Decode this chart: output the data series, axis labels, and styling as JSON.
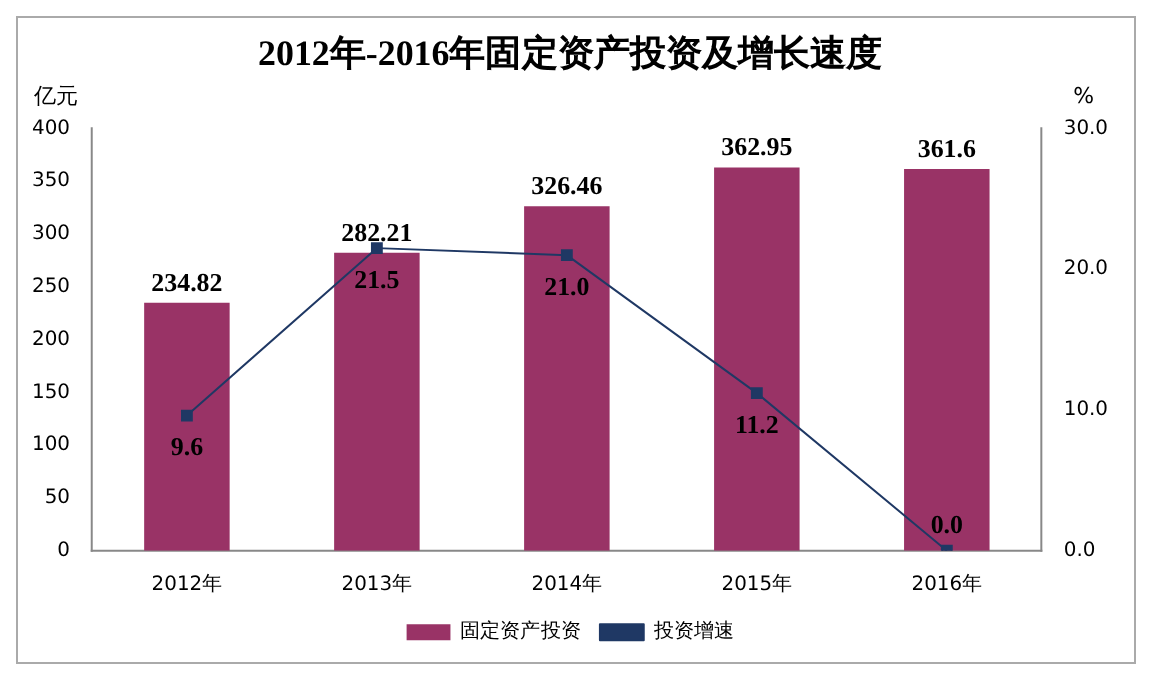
{
  "chart_data": {
    "type": "bar",
    "title": "2012年-2016年固定资产投资及增长速度",
    "ylabel": "亿元",
    "y2label": "%",
    "categories": [
      "2012年",
      "2013年",
      "2014年",
      "2015年",
      "2016年"
    ],
    "series": [
      {
        "name": "固定资产投资",
        "color": "#993366",
        "values": [
          234.82,
          282.21,
          326.46,
          362.95,
          361.6
        ],
        "value_labels": [
          "234.82",
          "282.21",
          "326.46",
          "362.95",
          "361.6"
        ]
      },
      {
        "name": "投资增速",
        "type": "line",
        "axis": "y2",
        "color": "#1f3864",
        "values": [
          9.6,
          21.5,
          21.0,
          11.2,
          0.0
        ],
        "value_labels": [
          "9.6",
          "21.5",
          "21.0",
          "11.2",
          "0.0"
        ],
        "marker": "square"
      }
    ],
    "ylim": [
      0,
      400
    ],
    "yticks": [
      0,
      50,
      100,
      150,
      200,
      250,
      300,
      350,
      400
    ],
    "y2lim": [
      0,
      30
    ],
    "y2ticks": [
      {
        "value": 0,
        "label": "0.0"
      },
      {
        "value": 10,
        "label": "10.0"
      },
      {
        "value": 20,
        "label": "20.0"
      },
      {
        "value": 30,
        "label": "30.0"
      }
    ],
    "grid": false,
    "legend": "bottom"
  }
}
